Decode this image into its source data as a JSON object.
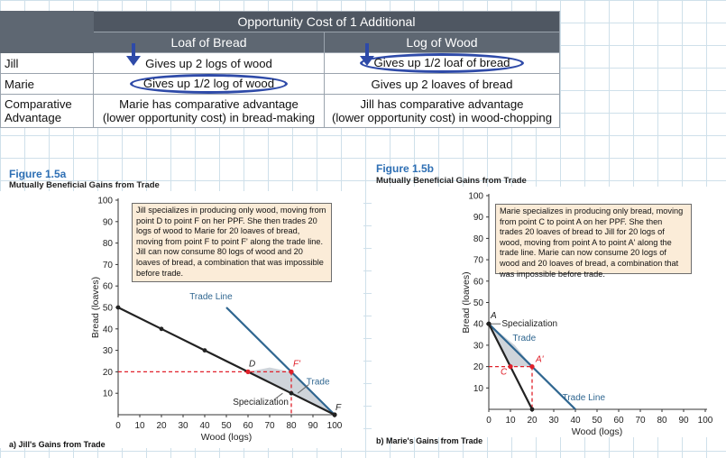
{
  "table": {
    "title": "Opportunity Cost of 1 Additional",
    "col_bread": "Loaf of Bread",
    "col_wood": "Log of Wood",
    "rows": [
      {
        "label": "Jill",
        "bread": "Gives up 2 logs of wood",
        "wood": "Gives up 1/2 loaf of bread"
      },
      {
        "label": "Marie",
        "bread": "Gives up 1/2 log of wood",
        "wood": "Gives up 2 loaves of bread"
      }
    ],
    "advantage": {
      "label_1": "Comparative",
      "label_2": "Advantage",
      "bread_1": "Marie has comparative advantage",
      "bread_2": "(lower opportunity cost) in bread-making",
      "wood_1": "Jill has comparative advantage",
      "wood_2": "(lower opportunity cost) in wood-chopping"
    },
    "colors": {
      "header": "#4f5762",
      "circle": "#2e4aa8",
      "arrow": "#2e4aa8"
    }
  },
  "fig_a": {
    "number": "Figure 1.5a",
    "title": "Mutually Beneficial Gains from Trade",
    "caption": "a) Jill's Gains from Trade",
    "callout": "Jill specializes in producing only wood, moving from point D to point F on her PPF. She then trades 20 logs of wood to Marie for 20 loaves of bread, moving from point F to point F' along the trade line. Jill can now consume 80 logs of wood and 20 loaves of bread, a combination that was impossible before trade.",
    "labels": {
      "trade_line": "Trade Line",
      "trade": "Trade",
      "specialization": "Specialization",
      "D": "D",
      "F": "F",
      "Fp": "F'"
    }
  },
  "fig_b": {
    "number": "Figure 1.5b",
    "title": "Mutually Beneficial Gains from Trade",
    "caption": "b) Marie's Gains from Trade",
    "callout": "Marie specializes in producing only bread, moving from point C to point A on her PPF. She then trades 20 loaves of bread to Jill for 20 logs of wood, moving from point A to point A' along the trade line. Marie can now consume 20 logs of wood and 20 loaves of bread, a combination that was impossible before trade.",
    "labels": {
      "trade_line": "Trade Line",
      "trade": "Trade",
      "specialization": "Specialization",
      "A": "A",
      "Ap": "A'",
      "C": "C"
    }
  },
  "chart_data": [
    {
      "type": "line",
      "xlabel": "Wood (logs)",
      "ylabel": "Bread (loaves)",
      "xlim": [
        0,
        100
      ],
      "ylim": [
        0,
        100
      ],
      "x_ticks": [
        "0",
        "10",
        "20",
        "30",
        "40",
        "50",
        "60",
        "70",
        "80",
        "90",
        "100"
      ],
      "y_ticks": [
        "10",
        "20",
        "30",
        "40",
        "50",
        "60",
        "70",
        "80",
        "90",
        "100"
      ],
      "series": [
        {
          "role": "ppf",
          "x": [
            0,
            20,
            40,
            60,
            80,
            100
          ],
          "y": [
            50,
            40,
            30,
            20,
            10,
            0
          ],
          "color": "#222222"
        },
        {
          "role": "trade-line",
          "x": [
            50,
            100
          ],
          "y": [
            50,
            0
          ],
          "color": "#2f6690"
        }
      ],
      "points": [
        {
          "label": "D",
          "x": 60,
          "y": 20
        },
        {
          "label": "F",
          "x": 100,
          "y": 0
        },
        {
          "label": "F'",
          "x": 80,
          "y": 20
        }
      ],
      "guides": {
        "x": 80,
        "y": 20,
        "color": "#e0202a"
      }
    },
    {
      "type": "line",
      "xlabel": "Wood (logs)",
      "ylabel": "Bread (loaves)",
      "xlim": [
        0,
        100
      ],
      "ylim": [
        0,
        100
      ],
      "x_ticks": [
        "0",
        "10",
        "20",
        "30",
        "40",
        "50",
        "60",
        "70",
        "80",
        "90",
        "100"
      ],
      "y_ticks": [
        "10",
        "20",
        "30",
        "40",
        "50",
        "60",
        "70",
        "80",
        "90",
        "100"
      ],
      "series": [
        {
          "role": "ppf",
          "x": [
            0,
            10,
            20
          ],
          "y": [
            40,
            20,
            0
          ],
          "color": "#222222"
        },
        {
          "role": "trade-line",
          "x": [
            0,
            40
          ],
          "y": [
            40,
            0
          ],
          "color": "#2f6690"
        }
      ],
      "points": [
        {
          "label": "A",
          "x": 0,
          "y": 40
        },
        {
          "label": "C",
          "x": 10,
          "y": 20
        },
        {
          "label": "A'",
          "x": 20,
          "y": 20
        }
      ],
      "guides": {
        "x": 20,
        "y": 20,
        "color": "#e0202a"
      }
    }
  ]
}
